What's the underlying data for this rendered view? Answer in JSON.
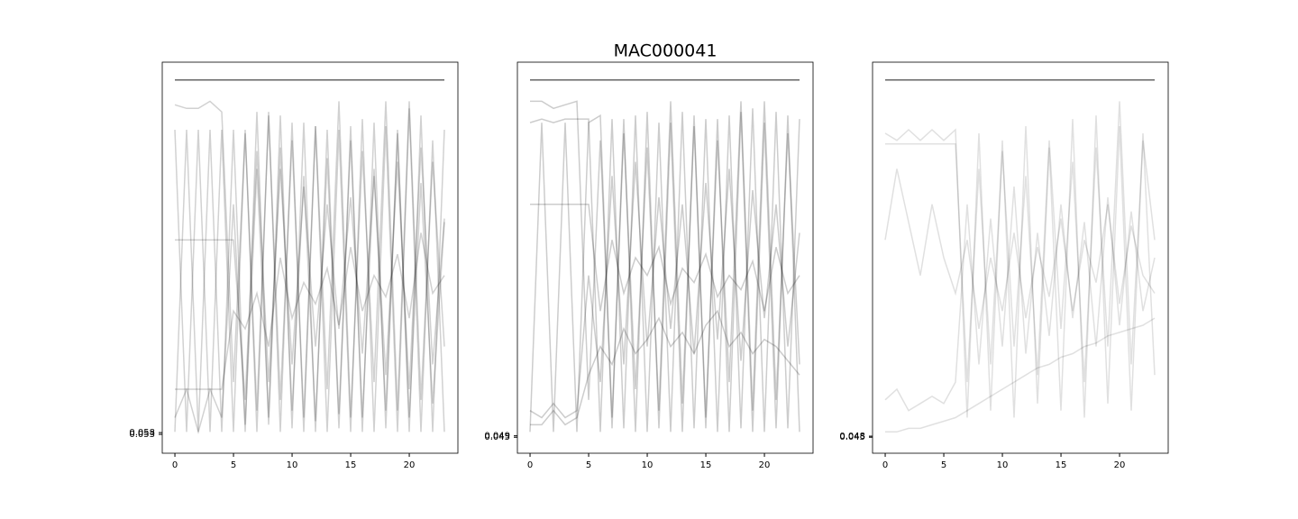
{
  "title": "MAC000041",
  "chart_data": [
    {
      "type": "line",
      "color": "#000000",
      "alpha": 0.18,
      "x": [
        0,
        1,
        2,
        3,
        4,
        5,
        6,
        7,
        8,
        9,
        10,
        11,
        12,
        13,
        14,
        15,
        16,
        17,
        18,
        19,
        20,
        21,
        22,
        23
      ],
      "xlim": [
        -1.08,
        24.15
      ],
      "ylim": [
        0,
        1.1
      ],
      "xticks": [
        0,
        5,
        10,
        15,
        20
      ],
      "yticks": [
        0.053,
        0.058
      ],
      "series": [
        {
          "values": [
            1.05,
            1.05,
            1.05,
            1.05,
            1.05,
            1.05,
            1.05,
            1.05,
            1.05,
            1.05,
            1.05,
            1.05,
            1.05,
            1.05,
            1.05,
            1.05,
            1.05,
            1.05,
            1.05,
            1.05,
            1.05,
            1.05,
            1.05,
            1.05
          ]
        },
        {
          "values": [
            0.91,
            0.06,
            0.91,
            0.06,
            0.91,
            0.06,
            0.91,
            0.06,
            0.96,
            0.06,
            0.93,
            0.06,
            0.92,
            0.06,
            0.91,
            0.06,
            0.94,
            0.06,
            0.92,
            0.06,
            0.97,
            0.06,
            0.88,
            0.06
          ]
        },
        {
          "values": [
            0.06,
            0.91,
            0.06,
            0.91,
            0.06,
            0.91,
            0.06,
            0.96,
            0.08,
            0.95,
            0.07,
            0.93,
            0.06,
            0.91,
            0.07,
            0.92,
            0.06,
            0.93,
            0.07,
            0.91,
            0.06,
            0.95,
            0.06,
            0.91
          ]
        },
        {
          "values": [
            0.6,
            0.6,
            0.6,
            0.6,
            0.6,
            0.6,
            0.15,
            0.85,
            0.2,
            0.8,
            0.25,
            0.75,
            0.3,
            0.7,
            0.35,
            0.72,
            0.28,
            0.78,
            0.22,
            0.82,
            0.18,
            0.86,
            0.25,
            0.66
          ]
        },
        {
          "values": [
            0.18,
            0.18,
            0.18,
            0.18,
            0.18,
            0.4,
            0.35,
            0.45,
            0.3,
            0.55,
            0.38,
            0.48,
            0.42,
            0.52,
            0.36,
            0.58,
            0.4,
            0.5,
            0.44,
            0.56,
            0.38,
            0.62,
            0.45,
            0.5
          ]
        },
        {
          "values": [
            0.98,
            0.97,
            0.97,
            0.99,
            0.96,
            0.2,
            0.9,
            0.12,
            0.95,
            0.15,
            0.88,
            0.1,
            0.92,
            0.18,
            0.99,
            0.1,
            0.85,
            0.2,
            0.99,
            0.12,
            0.99,
            0.15,
            0.82,
            0.3
          ]
        },
        {
          "values": [
            0.1,
            0.18,
            0.06,
            0.18,
            0.1,
            0.7,
            0.08,
            0.8,
            0.1,
            0.86,
            0.12,
            0.78,
            0.09,
            0.83,
            0.11,
            0.88,
            0.1,
            0.8,
            0.12,
            0.9,
            0.1,
            0.76,
            0.14,
            0.65
          ]
        }
      ]
    },
    {
      "type": "line",
      "color": "#000000",
      "alpha": 0.2,
      "x": [
        0,
        1,
        2,
        3,
        4,
        5,
        6,
        7,
        8,
        9,
        10,
        11,
        12,
        13,
        14,
        15,
        16,
        17,
        18,
        19,
        20,
        21,
        22,
        23
      ],
      "xlim": [
        -1.08,
        24.15
      ],
      "ylim": [
        0,
        1.1
      ],
      "xticks": [
        0,
        5,
        10,
        15,
        20
      ],
      "yticks": [
        0.045,
        0.049
      ],
      "series": [
        {
          "values": [
            1.05,
            1.05,
            1.05,
            1.05,
            1.05,
            1.05,
            1.05,
            1.05,
            1.05,
            1.05,
            1.05,
            1.05,
            1.05,
            1.05,
            1.05,
            1.05,
            1.05,
            1.05,
            1.05,
            1.05,
            1.05,
            1.05,
            1.05,
            1.05
          ]
        },
        {
          "values": [
            0.93,
            0.94,
            0.93,
            0.94,
            0.94,
            0.94,
            0.06,
            0.94,
            0.07,
            0.95,
            0.06,
            0.93,
            0.06,
            0.96,
            0.07,
            0.94,
            0.06,
            0.95,
            0.07,
            0.97,
            0.06,
            0.96,
            0.07,
            0.94
          ]
        },
        {
          "values": [
            0.06,
            0.93,
            0.06,
            0.93,
            0.06,
            0.93,
            0.95,
            0.07,
            0.94,
            0.06,
            0.96,
            0.07,
            0.93,
            0.06,
            0.95,
            0.07,
            0.94,
            0.06,
            0.96,
            0.06,
            0.93,
            0.07,
            0.95,
            0.06
          ]
        },
        {
          "values": [
            0.12,
            0.1,
            0.14,
            0.1,
            0.12,
            0.5,
            0.2,
            0.78,
            0.25,
            0.82,
            0.3,
            0.72,
            0.35,
            0.7,
            0.28,
            0.76,
            0.32,
            0.8,
            0.26,
            0.74,
            0.38,
            0.7,
            0.3,
            0.62
          ]
        },
        {
          "values": [
            0.7,
            0.7,
            0.7,
            0.7,
            0.7,
            0.7,
            0.4,
            0.6,
            0.45,
            0.55,
            0.5,
            0.58,
            0.42,
            0.52,
            0.48,
            0.56,
            0.44,
            0.5,
            0.46,
            0.54,
            0.4,
            0.58,
            0.45,
            0.5
          ]
        },
        {
          "values": [
            0.99,
            0.99,
            0.97,
            0.98,
            0.99,
            0.15,
            0.88,
            0.1,
            0.9,
            0.18,
            0.86,
            0.12,
            0.99,
            0.14,
            0.92,
            0.1,
            0.88,
            0.2,
            0.99,
            0.12,
            0.99,
            0.15,
            0.9,
            0.25
          ]
        },
        {
          "values": [
            0.08,
            0.08,
            0.12,
            0.08,
            0.1,
            0.22,
            0.3,
            0.25,
            0.35,
            0.28,
            0.32,
            0.38,
            0.3,
            0.34,
            0.28,
            0.36,
            0.4,
            0.3,
            0.34,
            0.28,
            0.32,
            0.3,
            0.26,
            0.22
          ]
        }
      ]
    },
    {
      "type": "line",
      "color": "#000000",
      "alpha": 0.12,
      "x": [
        0,
        1,
        2,
        3,
        4,
        5,
        6,
        7,
        8,
        9,
        10,
        11,
        12,
        13,
        14,
        15,
        16,
        17,
        18,
        19,
        20,
        21,
        22,
        23
      ],
      "xlim": [
        -1.08,
        24.15
      ],
      "ylim": [
        0,
        1.1
      ],
      "xticks": [
        0,
        5,
        10,
        15,
        20
      ],
      "yticks": [
        0.045,
        0.048
      ],
      "series": [
        {
          "values": [
            1.05,
            1.05,
            1.05,
            1.05,
            1.05,
            1.05,
            1.05,
            1.05,
            1.05,
            1.05,
            1.05,
            1.05,
            1.05,
            1.05,
            1.05,
            1.05,
            1.05,
            1.05,
            1.05,
            1.05,
            1.05,
            1.05,
            1.05,
            1.05
          ]
        },
        {
          "values": [
            0.9,
            0.88,
            0.91,
            0.88,
            0.91,
            0.88,
            0.91,
            0.1,
            0.9,
            0.12,
            0.88,
            0.1,
            0.92,
            0.14,
            0.86,
            0.12,
            0.94,
            0.1,
            0.95,
            0.14,
            0.92,
            0.12,
            0.9,
            0.22
          ]
        },
        {
          "values": [
            0.87,
            0.87,
            0.87,
            0.87,
            0.87,
            0.87,
            0.87,
            0.2,
            0.8,
            0.25,
            0.85,
            0.3,
            0.78,
            0.22,
            0.88,
            0.35,
            0.82,
            0.2,
            0.86,
            0.3,
            0.99,
            0.25,
            0.88,
            0.6
          ]
        },
        {
          "values": [
            0.15,
            0.18,
            0.12,
            0.14,
            0.16,
            0.14,
            0.2,
            0.7,
            0.25,
            0.66,
            0.3,
            0.75,
            0.28,
            0.62,
            0.33,
            0.7,
            0.38,
            0.65,
            0.3,
            0.72,
            0.36,
            0.68,
            0.4,
            0.55
          ]
        },
        {
          "values": [
            0.06,
            0.06,
            0.07,
            0.07,
            0.08,
            0.09,
            0.1,
            0.12,
            0.14,
            0.16,
            0.18,
            0.2,
            0.22,
            0.24,
            0.25,
            0.27,
            0.28,
            0.3,
            0.31,
            0.33,
            0.34,
            0.35,
            0.36,
            0.38
          ]
        },
        {
          "values": [
            0.6,
            0.8,
            0.65,
            0.5,
            0.7,
            0.55,
            0.45,
            0.6,
            0.35,
            0.55,
            0.4,
            0.62,
            0.38,
            0.58,
            0.44,
            0.66,
            0.4,
            0.6,
            0.48,
            0.7,
            0.42,
            0.64,
            0.5,
            0.45
          ]
        }
      ]
    }
  ]
}
